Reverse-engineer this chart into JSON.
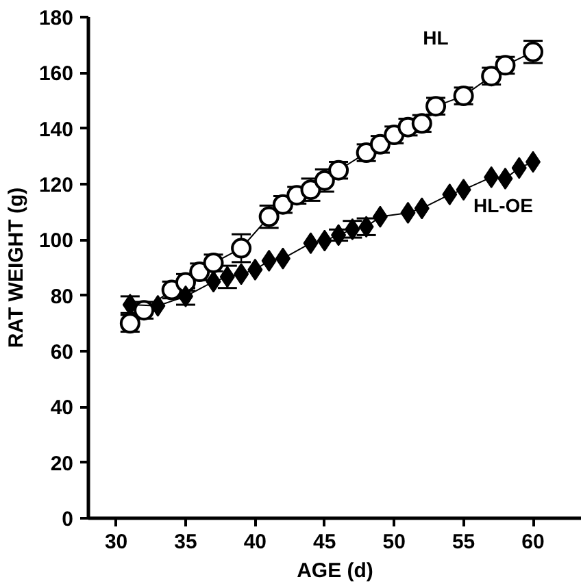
{
  "chart_data": {
    "type": "line",
    "xlabel": "AGE (d)",
    "ylabel": "RAT WEIGHT (g)",
    "xlim": [
      28,
      63.5
    ],
    "xticks": [
      30,
      35,
      40,
      45,
      50,
      55,
      60
    ],
    "ylim": [
      0,
      180
    ],
    "yticks": [
      0,
      20,
      40,
      60,
      80,
      100,
      120,
      140,
      160,
      180
    ],
    "grid": false,
    "series": [
      {
        "name": "HL",
        "color": "#000000",
        "marker": "circle",
        "x": [
          31,
          32,
          34,
          35,
          36,
          37,
          39,
          41,
          42,
          43,
          44,
          45,
          46,
          48,
          49,
          50,
          51,
          52,
          53,
          55,
          57,
          58,
          60
        ],
        "values": [
          70,
          74.7,
          82,
          84.7,
          88.5,
          91.7,
          97,
          108.3,
          112.7,
          116,
          118,
          121.3,
          125,
          131.3,
          134.3,
          137.7,
          140.5,
          141.8,
          148,
          151.7,
          158.8,
          162.7,
          167.5
        ],
        "errors": [
          3,
          3,
          3,
          3,
          3,
          3,
          5,
          4,
          3,
          3,
          4,
          4,
          3,
          3,
          3,
          3,
          3,
          3,
          3,
          3,
          3,
          3,
          4
        ]
      },
      {
        "name": "HL-OE",
        "color": "#000000",
        "marker": "diamond",
        "x": [
          31,
          33,
          35,
          37,
          38,
          39,
          40,
          41,
          42,
          44,
          45,
          46,
          47,
          48,
          49,
          51,
          52,
          54,
          55,
          57,
          58,
          59,
          60
        ],
        "values": [
          76.7,
          76.3,
          79.7,
          85,
          86.7,
          87.7,
          89.3,
          92.5,
          93.3,
          98.8,
          99.7,
          101.7,
          103.8,
          104.7,
          108.3,
          109.7,
          111.3,
          116.3,
          118,
          122.5,
          122,
          125.8,
          128
        ],
        "errors": [
          3,
          null,
          3,
          null,
          4,
          null,
          null,
          null,
          null,
          null,
          null,
          2,
          3,
          3,
          null,
          null,
          null,
          null,
          null,
          null,
          null,
          null,
          null
        ]
      }
    ]
  }
}
